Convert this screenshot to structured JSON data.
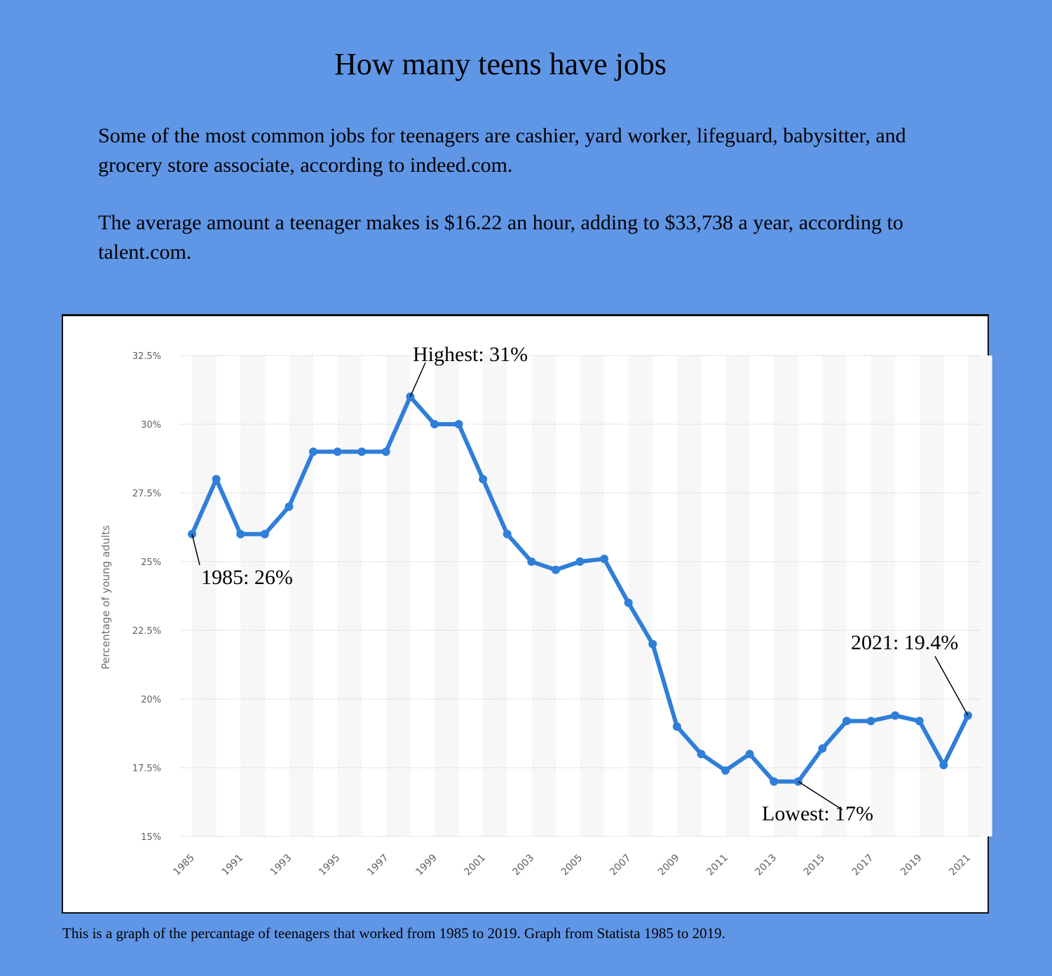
{
  "title": "How many teens have jobs",
  "paragraphs": [
    "Some of the most common jobs for teenagers are cashier, yard worker, lifeguard, babysitter, and grocery store associate, according to indeed.com.",
    "The average amount a teenager makes is $16.22 an hour, adding to $33,738 a year, according to talent.com."
  ],
  "caption": "This is a graph of the percantage of teenagers that worked  from 1985 to 2019. Graph from Statista 1985 to 2019.",
  "colors": {
    "background": "#6096e6",
    "line": "#2f7ed8",
    "grid": "#cccccc",
    "band": "#f7f7f7"
  },
  "chart_data": {
    "type": "line",
    "title": "",
    "xlabel": "",
    "ylabel": "Percentage of young adults",
    "ylim": [
      15,
      32.5
    ],
    "yticks": [
      "15%",
      "17.5%",
      "20%",
      "22.5%",
      "25%",
      "27.5%",
      "30%",
      "32.5%"
    ],
    "ytick_values": [
      15,
      17.5,
      20,
      22.5,
      25,
      27.5,
      30,
      32.5
    ],
    "xtick_labels": [
      "1985",
      "1991",
      "1993",
      "1995",
      "1997",
      "1999",
      "2001",
      "2003",
      "2005",
      "2007",
      "2009",
      "2011",
      "2013",
      "2015",
      "2017",
      "2019",
      "2021"
    ],
    "series": [
      {
        "name": "Percentage of young adults",
        "categories": [
          "1985",
          "1990",
          "1991",
          "1992",
          "1993",
          "1994",
          "1995",
          "1996",
          "1997",
          "1998",
          "1999",
          "2000",
          "2001",
          "2002",
          "2003",
          "2004",
          "2005",
          "2006",
          "2007",
          "2008",
          "2009",
          "2010",
          "2011",
          "2012",
          "2013",
          "2014",
          "2015",
          "2016",
          "2017",
          "2018",
          "2019",
          "2020",
          "2021"
        ],
        "values": [
          26,
          28,
          26,
          26,
          27,
          29,
          29,
          29,
          29,
          31,
          30,
          30,
          28,
          26,
          25,
          24.7,
          25,
          25.1,
          23.5,
          22,
          19,
          18,
          17.4,
          18,
          17,
          17,
          18.2,
          19.2,
          19.2,
          19.4,
          19.2,
          17.6,
          19.4
        ]
      }
    ],
    "annotations": [
      {
        "label": "Highest: 31%",
        "index": 9
      },
      {
        "label": "1985: 26%",
        "index": 0
      },
      {
        "label": "2021: 19.4%",
        "index": 32
      },
      {
        "label": "Lowest: 17%",
        "index": 25
      }
    ]
  }
}
